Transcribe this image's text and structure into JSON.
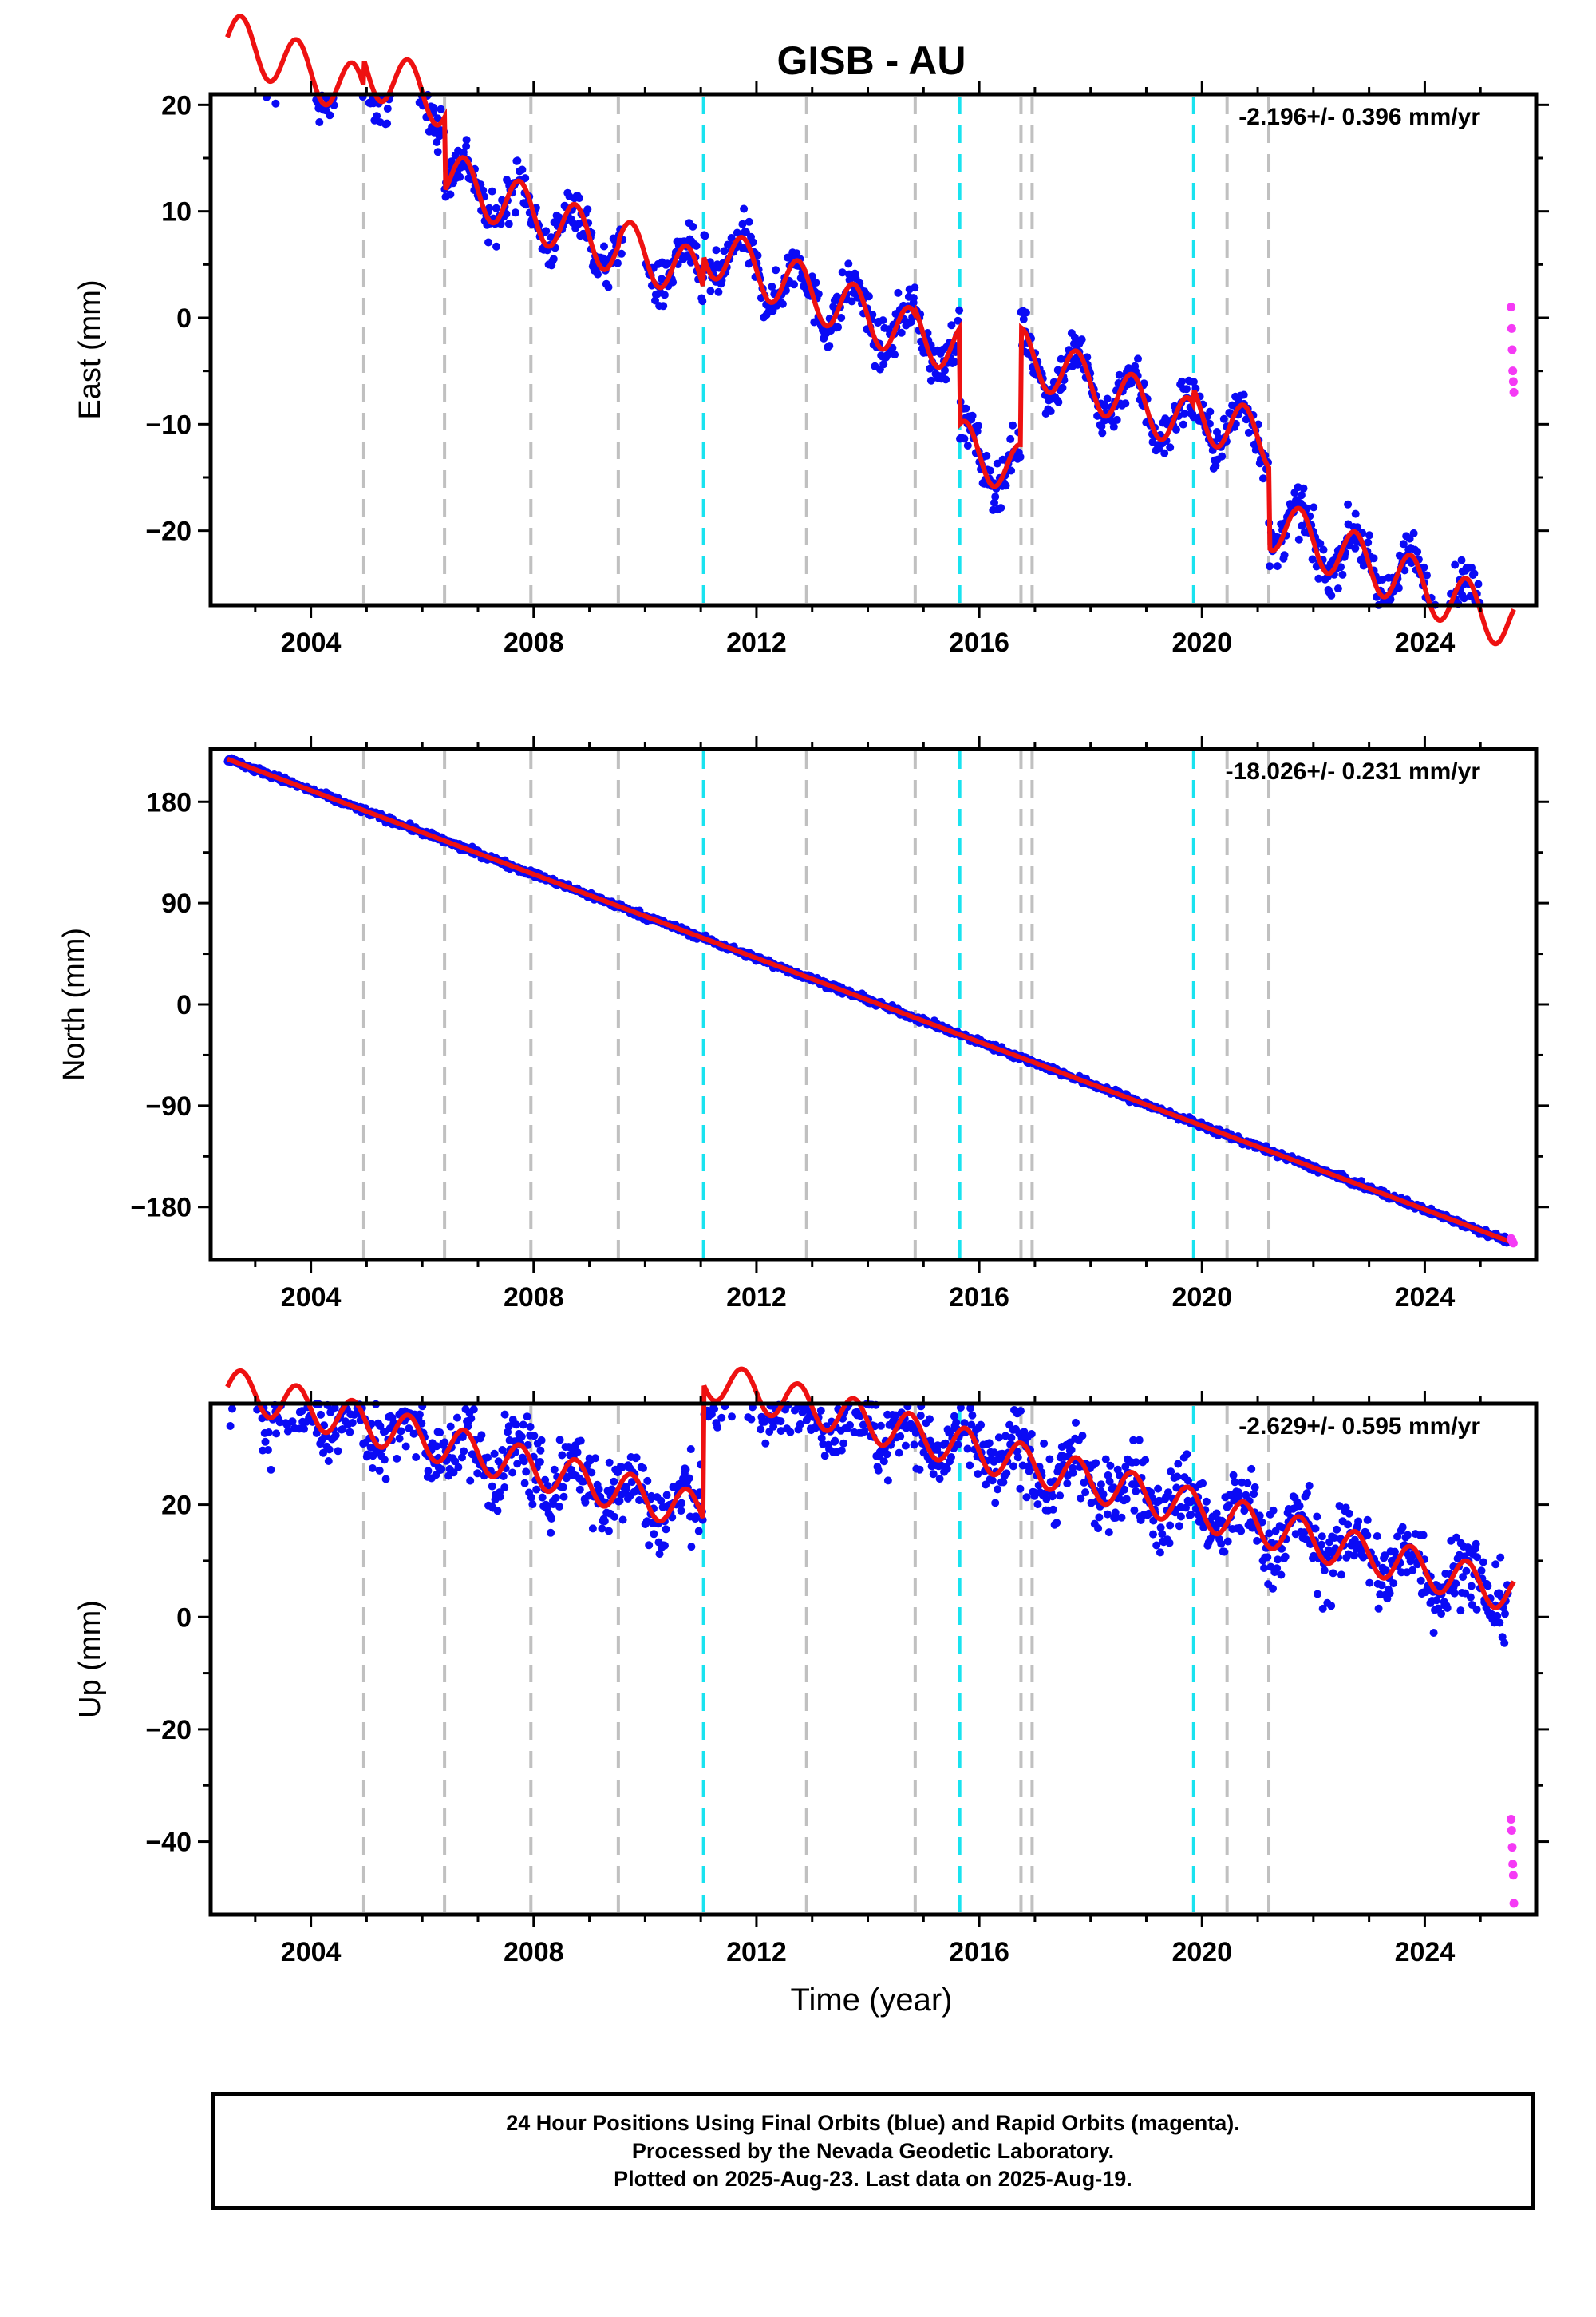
{
  "title": "GISB - AU",
  "xlabel": "Time (year)",
  "colors": {
    "final": "#0a0af5",
    "rapid": "#f53af5",
    "model": "#ee1111",
    "break_gray": "#c0c0c0",
    "break_cyan": "#19e3f0"
  },
  "caption": [
    "24 Hour Positions Using Final Orbits (blue) and Rapid Orbits (magenta).",
    "Processed by the Nevada Geodetic Laboratory.",
    "Plotted on 2025-Aug-23. Last data on 2025-Aug-19."
  ],
  "chart_data": [
    {
      "type": "scatter",
      "ylabel": "East (mm)",
      "rate_label": "-2.196+/- 0.396 mm/yr",
      "xlim": [
        2002.2,
        2026.0
      ],
      "ylim": [
        -27,
        21
      ],
      "yticks": [
        -20,
        -10,
        0,
        10,
        20
      ],
      "xticks": [
        2004,
        2008,
        2012,
        2016,
        2020,
        2024
      ],
      "grid": false,
      "breaks_gray": [
        2004.95,
        2006.4,
        2007.95,
        2009.52,
        2012.9,
        2014.85,
        2016.75,
        2016.95,
        2020.45,
        2021.2
      ],
      "breaks_cyan": [
        2011.05,
        2015.65,
        2019.85
      ],
      "series": [
        {
          "name": "final",
          "kind": "points",
          "x_range": [
            2002.5,
            2025.5
          ],
          "noise": 1.6
        },
        {
          "name": "rapid",
          "kind": "points",
          "x": [
            2025.55,
            2025.56,
            2025.57,
            2025.58,
            2025.59,
            2025.6
          ],
          "y": [
            1,
            -1,
            -3,
            -5,
            -6,
            -7
          ]
        },
        {
          "name": "model",
          "kind": "line",
          "segments": [
            {
              "x0": 2002.5,
              "x1": 2004.95,
              "offset": 5.5,
              "amp": 2.5
            },
            {
              "x0": 2004.95,
              "x1": 2006.4,
              "offset": 8.0,
              "amp": 2.5
            },
            {
              "x0": 2006.4,
              "x1": 2009.52,
              "offset": 1.0,
              "amp": 2.5
            },
            {
              "x0": 2009.52,
              "x1": 2011.05,
              "offset": 1.5,
              "amp": 2.5
            },
            {
              "x0": 2011.05,
              "x1": 2014.85,
              "offset": 4.5,
              "amp": 2.5
            },
            {
              "x0": 2014.85,
              "x1": 2015.65,
              "offset": 5.0,
              "amp": 2.5
            },
            {
              "x0": 2015.65,
              "x1": 2016.75,
              "offset": -4.0,
              "amp": 2.5
            },
            {
              "x0": 2016.75,
              "x1": 2019.85,
              "offset": 7.0,
              "amp": 2.5
            },
            {
              "x0": 2019.85,
              "x1": 2021.2,
              "offset": 8.5,
              "amp": 2.5
            },
            {
              "x0": 2021.2,
              "x1": 2025.6,
              "offset": 1.0,
              "amp": 2.5
            }
          ],
          "rate": -2.196
        }
      ]
    },
    {
      "type": "scatter",
      "ylabel": "North (mm)",
      "rate_label": "-18.026+/- 0.231 mm/yr",
      "xlim": [
        2002.2,
        2026.0
      ],
      "ylim": [
        -227,
        227
      ],
      "yticks": [
        -180,
        -90,
        0,
        90,
        180
      ],
      "xticks": [
        2004,
        2008,
        2012,
        2016,
        2020,
        2024
      ],
      "grid": false,
      "breaks_gray": [
        2004.95,
        2006.4,
        2007.95,
        2009.52,
        2012.9,
        2014.85,
        2016.75,
        2016.95,
        2020.45,
        2021.2
      ],
      "breaks_cyan": [
        2011.05,
        2015.65,
        2019.85
      ],
      "series": [
        {
          "name": "final",
          "kind": "points",
          "x_range": [
            2002.5,
            2025.5
          ],
          "noise": 2.0
        },
        {
          "name": "rapid",
          "kind": "points",
          "x": [
            2025.55,
            2025.57,
            2025.59
          ],
          "y": [
            -208,
            -210,
            -212
          ]
        },
        {
          "name": "model",
          "kind": "line",
          "x": [
            2002.5,
            2025.6
          ],
          "y": [
            218,
            -212
          ],
          "rate": -18.026
        }
      ]
    },
    {
      "type": "scatter",
      "ylabel": "Up (mm)",
      "rate_label": "-2.629+/- 0.595 mm/yr",
      "xlim": [
        2002.2,
        2026.0
      ],
      "ylim": [
        -53,
        38
      ],
      "yticks": [
        -40,
        -20,
        0,
        20
      ],
      "xticks": [
        2004,
        2008,
        2012,
        2016,
        2020,
        2024
      ],
      "grid": false,
      "breaks_gray": [
        2004.95,
        2006.4,
        2007.95,
        2009.52,
        2012.9,
        2014.85,
        2016.75,
        2016.95,
        2020.45,
        2021.2
      ],
      "breaks_cyan": [
        2011.05,
        2015.65,
        2019.85
      ],
      "series": [
        {
          "name": "final",
          "kind": "points",
          "x_range": [
            2002.5,
            2025.5
          ],
          "noise": 5.0
        },
        {
          "name": "rapid",
          "kind": "points",
          "x": [
            2025.55,
            2025.56,
            2025.57,
            2025.58,
            2025.59,
            2025.6
          ],
          "y": [
            -36,
            -38,
            -41,
            -44,
            -46,
            -51
          ]
        },
        {
          "name": "model",
          "kind": "line",
          "segments": [
            {
              "x0": 2002.5,
              "x1": 2011.05,
              "offset": 16.0,
              "amp": 3.5
            },
            {
              "x0": 2011.05,
              "x1": 2025.6,
              "offset": 40.0,
              "amp": 3.5
            }
          ],
          "rate": -2.629
        }
      ]
    }
  ]
}
